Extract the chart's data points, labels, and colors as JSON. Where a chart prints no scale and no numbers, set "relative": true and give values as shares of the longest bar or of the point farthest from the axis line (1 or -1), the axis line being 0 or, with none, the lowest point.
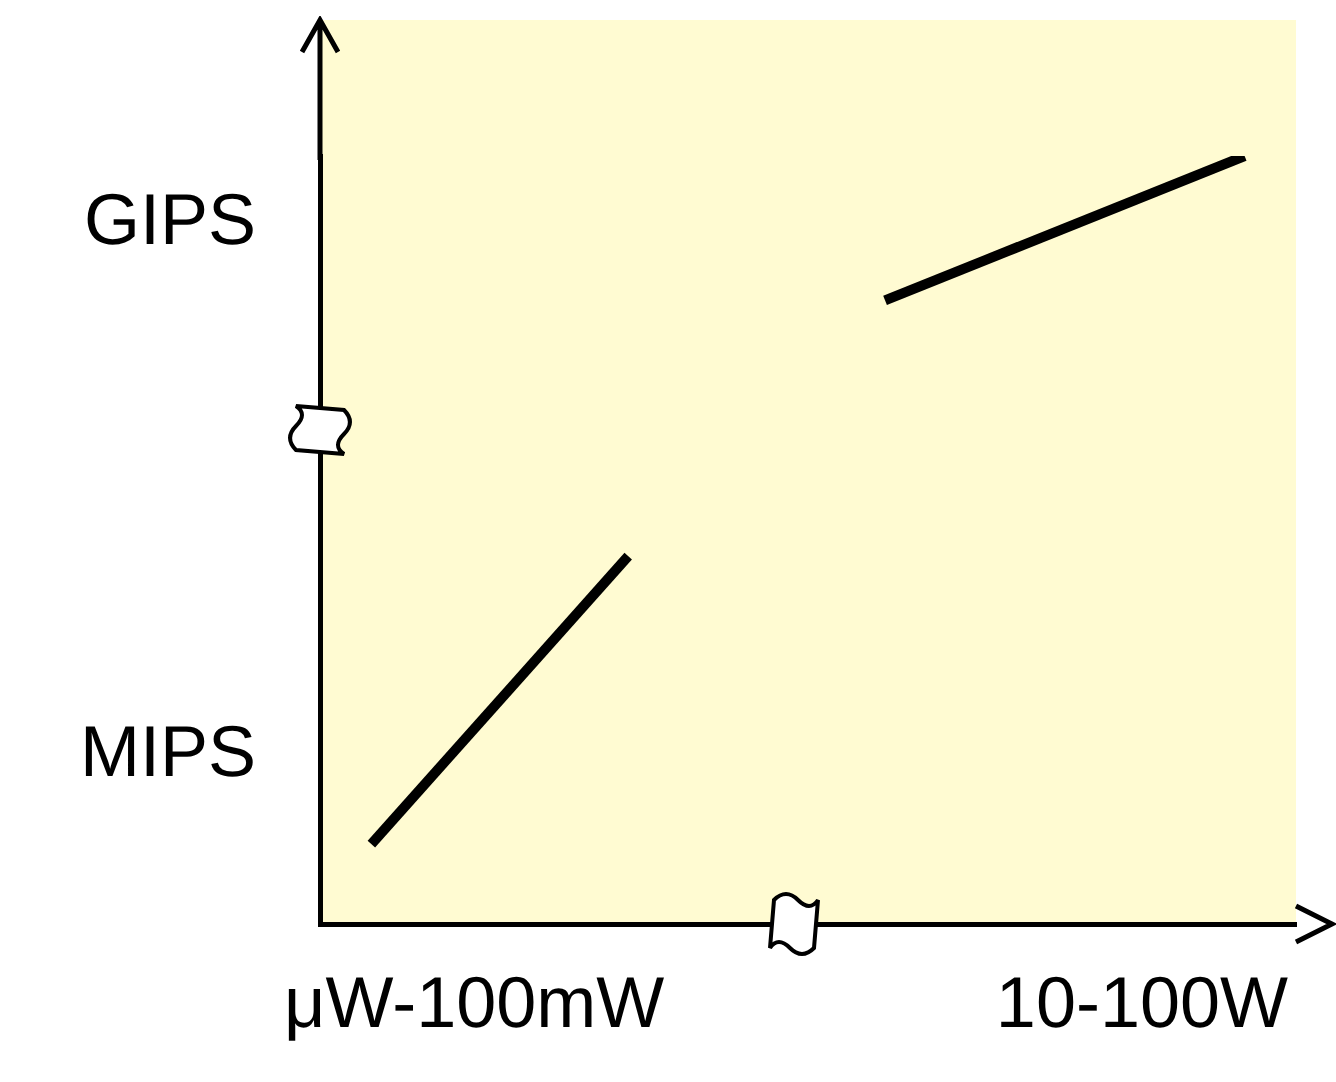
{
  "chart_data": {
    "type": "line",
    "relative": true,
    "categories": [
      null,
      null,
      null,
      "μW-100mW",
      null,
      null,
      null,
      null,
      null,
      null,
      null,
      null,
      null,
      null,
      null,
      null,
      "10-100W",
      null,
      null,
      null
    ],
    "series": [
      {
        "color": "#000000",
        "values": [
          null,
          0.104,
          null,
          null,
          null,
          null,
          0.479,
          null,
          null,
          null,
          null,
          null,
          null,
          null,
          null,
          null,
          null,
          null,
          null,
          null
        ]
      },
      {
        "color": "#000000",
        "values": [
          null,
          null,
          null,
          null,
          null,
          null,
          null,
          null,
          null,
          null,
          null,
          0.812,
          null,
          null,
          null,
          null,
          null,
          null,
          1,
          null
        ]
      }
    ],
    "annotations": [
      "MIPS",
      "GIPS"
    ],
    "grid": false,
    "legend": false,
    "marker": "none",
    "line_style": "solid"
  }
}
